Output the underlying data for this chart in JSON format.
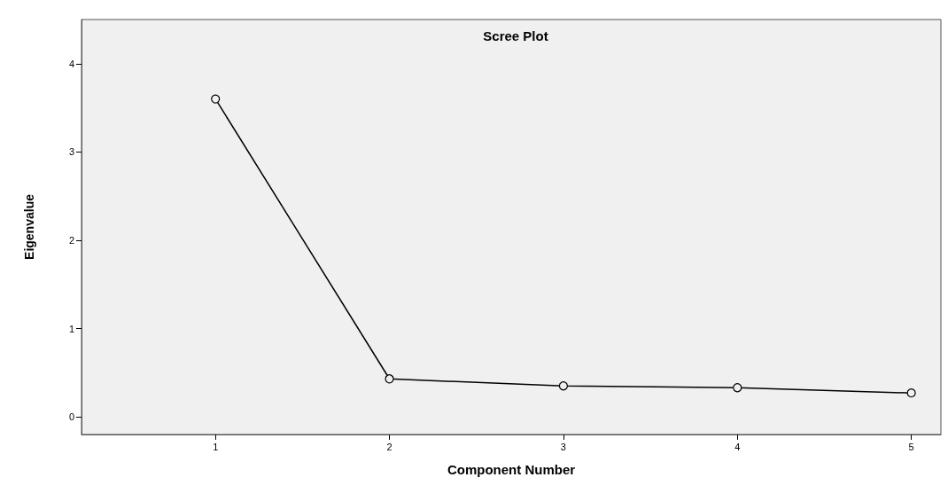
{
  "chart_data": {
    "type": "line",
    "title": "Scree Plot",
    "xlabel": "Component Number",
    "ylabel": "Eigenvalue",
    "x": [
      1,
      2,
      3,
      4,
      5
    ],
    "series": [
      {
        "color": "#000000",
        "values": [
          3.6,
          0.43,
          0.35,
          0.33,
          0.27
        ]
      }
    ],
    "xlim": [
      0.23,
      5.17
    ],
    "xticks": [
      1,
      2,
      3,
      4,
      5
    ],
    "ylim": [
      -0.2,
      4.5
    ],
    "yticks": [
      0,
      1,
      2,
      3,
      4
    ],
    "grid": false,
    "marker": "circle",
    "line_style": "solid"
  }
}
